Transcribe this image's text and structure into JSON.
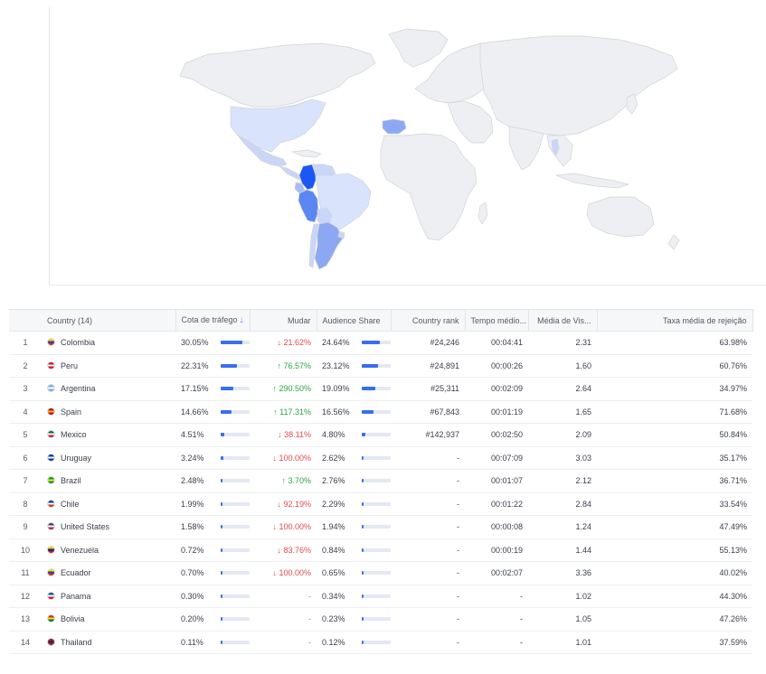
{
  "map": {
    "colors": {
      "c1": "#1a57f5",
      "c2": "#5a87f2",
      "c3": "#8da8f3",
      "c4": "#a9bdf5",
      "c5": "#c9d6f8",
      "c6": "#d9e3fb",
      "land": "#eeeff2"
    }
  },
  "table": {
    "headers": {
      "country": "Country (14)",
      "traffic": "Cota de tráfego",
      "change": "Mudar",
      "audience": "Audience Share",
      "rank": "Country rank",
      "time": "Tempo médio...",
      "visits": "Média de Vis...",
      "bounce": "Taxa média de rejeição"
    },
    "sort_icon": "arrow-down-icon",
    "rows": [
      {
        "num": "1",
        "country": "Colombia",
        "flag": [
          "#f7d117",
          "#1a4cb0",
          "#d8232a"
        ],
        "traffic": "30.05%",
        "traffic_value": 30.05,
        "change": "↓ 21.62%",
        "dir": "down",
        "audience": "24.64%",
        "audience_value": 24.64,
        "rank": "#24,246",
        "time": "00:04:41",
        "visits": "2.31",
        "bounce": "63.98%"
      },
      {
        "num": "2",
        "country": "Peru",
        "flag": [
          "#d91023",
          "#ffffff",
          "#d91023"
        ],
        "traffic": "22.31%",
        "traffic_value": 22.31,
        "change": "↑ 76.57%",
        "dir": "up",
        "audience": "23.12%",
        "audience_value": 23.12,
        "rank": "#24,891",
        "time": "00:00:26",
        "visits": "1.60",
        "bounce": "60.76%"
      },
      {
        "num": "3",
        "country": "Argentina",
        "flag": [
          "#74acdf",
          "#ffffff",
          "#74acdf"
        ],
        "traffic": "17.15%",
        "traffic_value": 17.15,
        "change": "↑ 290.50%",
        "dir": "up",
        "audience": "19.09%",
        "audience_value": 19.09,
        "rank": "#25,311",
        "time": "00:02:09",
        "visits": "2.64",
        "bounce": "34.97%"
      },
      {
        "num": "4",
        "country": "Spain",
        "flag": [
          "#c60b1e",
          "#ffc400",
          "#c60b1e"
        ],
        "traffic": "14.66%",
        "traffic_value": 14.66,
        "change": "↑ 117.31%",
        "dir": "up",
        "audience": "16.56%",
        "audience_value": 16.56,
        "rank": "#67,843",
        "time": "00:01:19",
        "visits": "1.65",
        "bounce": "71.68%"
      },
      {
        "num": "5",
        "country": "Mexico",
        "flag": [
          "#006847",
          "#ffffff",
          "#ce1126"
        ],
        "traffic": "4.51%",
        "traffic_value": 4.51,
        "change": "↓ 38.11%",
        "dir": "down",
        "audience": "4.80%",
        "audience_value": 4.8,
        "rank": "#142,937",
        "time": "00:02:50",
        "visits": "2.09",
        "bounce": "50.84%"
      },
      {
        "num": "6",
        "country": "Uruguay",
        "flag": [
          "#0038a8",
          "#ffffff",
          "#0038a8"
        ],
        "traffic": "3.24%",
        "traffic_value": 3.24,
        "change": "↓ 100.00%",
        "dir": "down",
        "audience": "2.62%",
        "audience_value": 2.62,
        "rank": "-",
        "time": "00:07:09",
        "visits": "3.03",
        "bounce": "35.17%"
      },
      {
        "num": "7",
        "country": "Brazil",
        "flag": [
          "#009c3b",
          "#ffdf00",
          "#009c3b"
        ],
        "traffic": "2.48%",
        "traffic_value": 2.48,
        "change": "↑ 3.70%",
        "dir": "up",
        "audience": "2.76%",
        "audience_value": 2.76,
        "rank": "-",
        "time": "00:01:07",
        "visits": "2.12",
        "bounce": "36.71%"
      },
      {
        "num": "8",
        "country": "Chile",
        "flag": [
          "#0039a6",
          "#ffffff",
          "#d52b1e"
        ],
        "traffic": "1.99%",
        "traffic_value": 1.99,
        "change": "↓ 92.19%",
        "dir": "down",
        "audience": "2.29%",
        "audience_value": 2.29,
        "rank": "-",
        "time": "00:01:22",
        "visits": "2.84",
        "bounce": "33.54%"
      },
      {
        "num": "9",
        "country": "United States",
        "flag": [
          "#3c3b6e",
          "#ffffff",
          "#b22234"
        ],
        "traffic": "1.58%",
        "traffic_value": 1.58,
        "change": "↓ 100.00%",
        "dir": "down",
        "audience": "1.94%",
        "audience_value": 1.94,
        "rank": "-",
        "time": "00:00:08",
        "visits": "1.24",
        "bounce": "47.49%"
      },
      {
        "num": "10",
        "country": "Venezuela",
        "flag": [
          "#ffcc00",
          "#00247d",
          "#cf142b"
        ],
        "traffic": "0.72%",
        "traffic_value": 0.72,
        "change": "↓ 83.76%",
        "dir": "down",
        "audience": "0.84%",
        "audience_value": 0.84,
        "rank": "-",
        "time": "00:00:19",
        "visits": "1.44",
        "bounce": "55.13%"
      },
      {
        "num": "11",
        "country": "Ecuador",
        "flag": [
          "#ffdd00",
          "#034ea2",
          "#ed1c24"
        ],
        "traffic": "0.70%",
        "traffic_value": 0.7,
        "change": "↓ 100.00%",
        "dir": "down",
        "audience": "0.65%",
        "audience_value": 0.65,
        "rank": "-",
        "time": "00:02:07",
        "visits": "3.36",
        "bounce": "40.02%"
      },
      {
        "num": "12",
        "country": "Panama",
        "flag": [
          "#005293",
          "#ffffff",
          "#d21034"
        ],
        "traffic": "0.30%",
        "traffic_value": 0.3,
        "change": "-",
        "dir": "neutral",
        "audience": "0.34%",
        "audience_value": 0.34,
        "rank": "-",
        "time": "-",
        "visits": "1.02",
        "bounce": "44.30%"
      },
      {
        "num": "13",
        "country": "Bolivia",
        "flag": [
          "#d52b1e",
          "#f9e300",
          "#007934"
        ],
        "traffic": "0.20%",
        "traffic_value": 0.2,
        "change": "-",
        "dir": "neutral",
        "audience": "0.23%",
        "audience_value": 0.23,
        "rank": "-",
        "time": "-",
        "visits": "1.05",
        "bounce": "47.26%"
      },
      {
        "num": "14",
        "country": "Thailand",
        "flag": [
          "#a51931",
          "#2d2a4a",
          "#a51931"
        ],
        "traffic": "0.11%",
        "traffic_value": 0.11,
        "change": "-",
        "dir": "neutral",
        "audience": "0.12%",
        "audience_value": 0.12,
        "rank": "-",
        "time": "-",
        "visits": "1.01",
        "bounce": "37.59%"
      }
    ]
  }
}
